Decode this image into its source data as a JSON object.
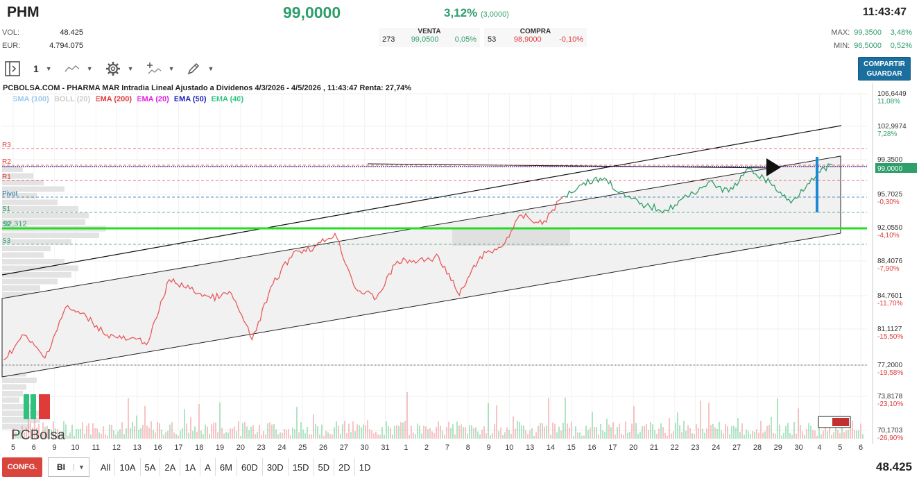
{
  "header": {
    "ticker": "PHM",
    "price": "99,0000",
    "change_pct": "3,12%",
    "change_abs": "(3,0000)",
    "time": "11:43:47",
    "vol_label": "VOL:",
    "vol_value": "48.425",
    "eur_label": "EUR:",
    "eur_value": "4.794.075",
    "venta_label": "VENTA",
    "venta_qty": "273",
    "venta_price": "99,0500",
    "venta_pct": "0,05%",
    "compra_label": "COMPRA",
    "compra_qty": "53",
    "compra_price": "98,9000",
    "compra_pct": "-0,10%",
    "max_label": "MAX:",
    "max_value": "99,3500",
    "max_pct": "3,48%",
    "min_label": "MIN:",
    "min_value": "96,5000",
    "min_pct": "0,52%"
  },
  "toolbar": {
    "interval": "1",
    "share_label_1": "COMPARTIR",
    "share_label_2": "GUARDAR"
  },
  "chart": {
    "title": "PCBOLSA.COM - PHARMA MAR Intradia Lineal Ajustado a Dividenos 4/3/2026 - 4/5/2026 , 11:43:47 Renta: 27,74%",
    "indicators": [
      {
        "label": "SMA (100)",
        "color": "#9cc9ee"
      },
      {
        "label": "BOLL (20)",
        "color": "#cccccc"
      },
      {
        "label": "EMA (200)",
        "color": "#e03b3b"
      },
      {
        "label": "EMA (20)",
        "color": "#e020e0"
      },
      {
        "label": "EMA (50)",
        "color": "#1a22b8"
      },
      {
        "label": "EMA (40)",
        "color": "#2ec27e"
      }
    ],
    "pivot_labels": [
      "R3",
      "R2",
      "R1",
      "Pivot",
      "S1",
      "S2",
      "S3"
    ],
    "support_value": "92,312",
    "price_axis": [
      {
        "value": "106,6449",
        "pct": "11,08%"
      },
      {
        "value": "102,9974",
        "pct": "7,28%"
      },
      {
        "value": "99,3500",
        "pct": ""
      },
      {
        "value": "99,0000",
        "pct": ""
      },
      {
        "value": "95,7025",
        "pct": "-0,30%"
      },
      {
        "value": "92,0550",
        "pct": "-4,10%"
      },
      {
        "value": "88,4076",
        "pct": "-7,90%"
      },
      {
        "value": "84,7601",
        "pct": "-11,70%"
      },
      {
        "value": "81,1127",
        "pct": "-15,50%"
      },
      {
        "value": "77,2000",
        "pct": "-19,58%"
      },
      {
        "value": "73,8178",
        "pct": "-23,10%"
      },
      {
        "value": "70,1703",
        "pct": "-26,90%"
      }
    ],
    "date_axis": [
      "5",
      "6",
      "9",
      "10",
      "11",
      "12",
      "13",
      "16",
      "17",
      "18",
      "19",
      "20",
      "23",
      "24",
      "25",
      "26",
      "27",
      "30",
      "31",
      "1",
      "2",
      "7",
      "8",
      "9",
      "10",
      "13",
      "14",
      "15",
      "16",
      "17",
      "20",
      "21",
      "22",
      "23",
      "24",
      "27",
      "28",
      "29",
      "30",
      "4",
      "5",
      "6"
    ],
    "logo_text": "PCBolsa"
  },
  "chart_data": {
    "type": "line",
    "title": "PCBOLSA.COM - PHARMA MAR Intradia Lineal Ajustado a Dividenos 4/3/2026 - 4/5/2026 , 11:43:47 Renta: 27,74%",
    "x": [
      "5",
      "6",
      "9",
      "10",
      "11",
      "12",
      "13",
      "16",
      "17",
      "18",
      "19",
      "20",
      "23",
      "24",
      "25",
      "26",
      "27",
      "30",
      "31",
      "1",
      "2",
      "7",
      "8",
      "9",
      "10",
      "13",
      "14",
      "15",
      "16",
      "17",
      "20",
      "21",
      "22",
      "23",
      "24",
      "27",
      "28",
      "29",
      "30",
      "4",
      "5"
    ],
    "series": [
      {
        "name": "",
        "values": [
          77.8,
          80.5,
          78.0,
          83.5,
          82.5,
          80.5,
          80.0,
          79.8,
          86.5,
          85.5,
          84.5,
          85.0,
          80.0,
          86.0,
          89.5,
          90.0,
          91.5,
          85.5,
          84.5,
          88.5,
          88.5,
          89.0,
          84.8,
          89.0,
          90.0,
          93.5,
          92.5,
          95.5,
          97.0,
          97.5,
          95.5,
          94.5,
          94.0,
          95.5,
          97.0,
          96.0,
          98.5,
          97.0,
          94.8,
          97.5,
          99.0
        ]
      }
    ],
    "ylim": [
      70.1703,
      106.6449
    ],
    "grid": true
  },
  "footer": {
    "confg": "CONFG.",
    "select_value": "BI",
    "periods": [
      "All",
      "10A",
      "5A",
      "2A",
      "1A",
      "A",
      "6M",
      "60D",
      "30D",
      "15D",
      "5D",
      "2D",
      "1D"
    ],
    "volume": "48.425"
  }
}
